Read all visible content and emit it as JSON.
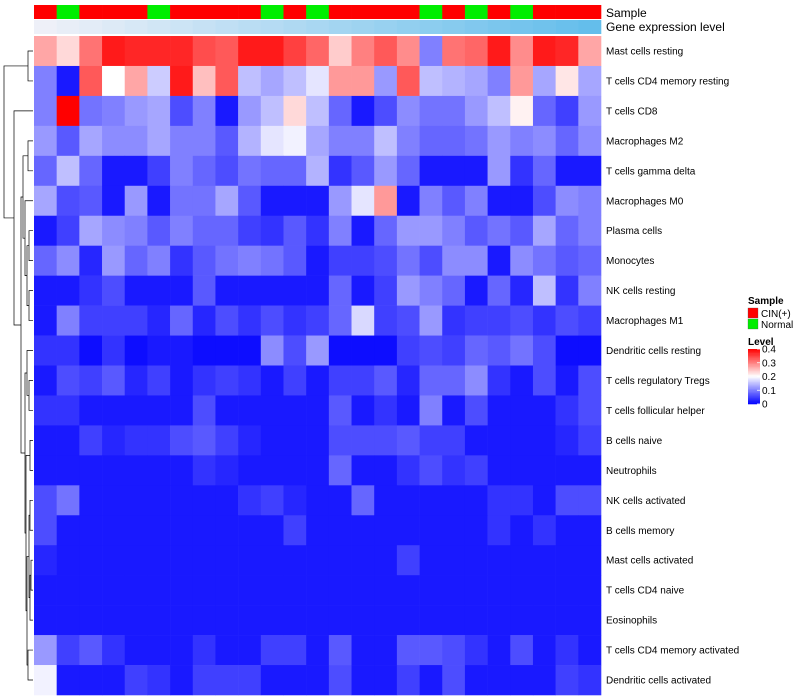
{
  "chart_data": {
    "type": "heatmap",
    "annotation_labels": {
      "sample": "Sample",
      "expression": "Gene expression level"
    },
    "sample_groups": [
      "CIN(+)",
      "Normal",
      "CIN(+)",
      "CIN(+)",
      "CIN(+)",
      "Normal",
      "CIN(+)",
      "CIN(+)",
      "CIN(+)",
      "CIN(+)",
      "Normal",
      "CIN(+)",
      "Normal",
      "CIN(+)",
      "CIN(+)",
      "CIN(+)",
      "CIN(+)",
      "Normal",
      "CIN(+)",
      "Normal",
      "CIN(+)",
      "Normal",
      "CIN(+)",
      "CIN(+)",
      "CIN(+)"
    ],
    "rows": [
      {
        "label": "Mast cells resting",
        "values": [
          0.27,
          0.23,
          0.31,
          0.38,
          0.37,
          0.37,
          0.37,
          0.34,
          0.33,
          0.38,
          0.38,
          0.35,
          0.32,
          0.24,
          0.3,
          0.33,
          0.29,
          0.1,
          0.31,
          0.32,
          0.38,
          0.29,
          0.38,
          0.37,
          0.27
        ]
      },
      {
        "label": "T cells CD4 memory resting",
        "values": [
          0.1,
          0.02,
          0.33,
          0.2,
          0.27,
          0.16,
          0.38,
          0.25,
          0.33,
          0.15,
          0.13,
          0.15,
          0.18,
          0.28,
          0.28,
          0.12,
          0.33,
          0.15,
          0.14,
          0.13,
          0.1,
          0.28,
          0.13,
          0.22,
          0.13
        ]
      },
      {
        "label": "T cells CD8",
        "values": [
          0.1,
          0.4,
          0.09,
          0.1,
          0.12,
          0.13,
          0.06,
          0.1,
          0.02,
          0.12,
          0.15,
          0.23,
          0.15,
          0.08,
          0.02,
          0.06,
          0.11,
          0.09,
          0.09,
          0.12,
          0.15,
          0.21,
          0.08,
          0.05,
          0.12
        ]
      },
      {
        "label": "Macrophages M2",
        "values": [
          0.12,
          0.07,
          0.13,
          0.11,
          0.11,
          0.13,
          0.1,
          0.1,
          0.07,
          0.14,
          0.18,
          0.19,
          0.13,
          0.1,
          0.1,
          0.15,
          0.1,
          0.08,
          0.08,
          0.09,
          0.12,
          0.1,
          0.11,
          0.08,
          0.11
        ]
      },
      {
        "label": "T cells gamma delta",
        "values": [
          0.08,
          0.15,
          0.08,
          0.02,
          0.02,
          0.05,
          0.1,
          0.08,
          0.06,
          0.09,
          0.08,
          0.08,
          0.14,
          0.04,
          0.07,
          0.12,
          0.08,
          0.02,
          0.02,
          0.02,
          0.12,
          0.04,
          0.08,
          0.02,
          0.02
        ]
      },
      {
        "label": "Macrophages M0",
        "values": [
          0.13,
          0.06,
          0.07,
          0.02,
          0.12,
          0.02,
          0.09,
          0.09,
          0.13,
          0.07,
          0.02,
          0.02,
          0.02,
          0.12,
          0.18,
          0.28,
          0.02,
          0.1,
          0.07,
          0.1,
          0.02,
          0.02,
          0.06,
          0.11,
          0.1
        ]
      },
      {
        "label": "Plasma cells",
        "values": [
          0.02,
          0.05,
          0.13,
          0.11,
          0.1,
          0.07,
          0.1,
          0.08,
          0.08,
          0.05,
          0.04,
          0.07,
          0.04,
          0.1,
          0.02,
          0.08,
          0.12,
          0.12,
          0.1,
          0.07,
          0.09,
          0.07,
          0.13,
          0.08,
          0.1
        ]
      },
      {
        "label": "Monocytes",
        "values": [
          0.08,
          0.11,
          0.03,
          0.12,
          0.08,
          0.1,
          0.04,
          0.07,
          0.09,
          0.1,
          0.09,
          0.07,
          0.02,
          0.05,
          0.05,
          0.06,
          0.09,
          0.06,
          0.11,
          0.11,
          0.02,
          0.11,
          0.09,
          0.07,
          0.08
        ]
      },
      {
        "label": "NK cells resting",
        "values": [
          0.02,
          0.02,
          0.04,
          0.06,
          0.02,
          0.02,
          0.02,
          0.07,
          0.02,
          0.02,
          0.02,
          0.02,
          0.02,
          0.08,
          0.02,
          0.05,
          0.12,
          0.1,
          0.08,
          0.02,
          0.08,
          0.03,
          0.15,
          0.04,
          0.1
        ]
      },
      {
        "label": "Macrophages M1",
        "values": [
          0.02,
          0.1,
          0.05,
          0.05,
          0.05,
          0.03,
          0.08,
          0.03,
          0.06,
          0.04,
          0.06,
          0.04,
          0.05,
          0.08,
          0.17,
          0.05,
          0.06,
          0.12,
          0.04,
          0.05,
          0.05,
          0.06,
          0.04,
          0.06,
          0.05
        ]
      },
      {
        "label": "Dendritic cells resting",
        "values": [
          0.04,
          0.04,
          0.01,
          0.04,
          0.01,
          0.02,
          0.02,
          0.01,
          0.01,
          0.01,
          0.11,
          0.06,
          0.12,
          0.01,
          0.01,
          0.01,
          0.05,
          0.06,
          0.05,
          0.08,
          0.07,
          0.09,
          0.06,
          0.01,
          0.01
        ]
      },
      {
        "label": "T cells regulatory  Tregs",
        "values": [
          0.02,
          0.06,
          0.05,
          0.07,
          0.03,
          0.05,
          0.02,
          0.04,
          0.05,
          0.04,
          0.02,
          0.05,
          0.02,
          0.05,
          0.05,
          0.07,
          0.03,
          0.08,
          0.08,
          0.11,
          0.04,
          0.02,
          0.06,
          0.02,
          0.06
        ]
      },
      {
        "label": "T cells follicular helper",
        "values": [
          0.04,
          0.04,
          0.02,
          0.02,
          0.02,
          0.02,
          0.02,
          0.06,
          0.02,
          0.02,
          0.02,
          0.02,
          0.02,
          0.07,
          0.02,
          0.04,
          0.02,
          0.1,
          0.02,
          0.06,
          0.02,
          0.02,
          0.02,
          0.04,
          0.06
        ]
      },
      {
        "label": "B cells naive",
        "values": [
          0.02,
          0.02,
          0.05,
          0.03,
          0.04,
          0.04,
          0.06,
          0.07,
          0.05,
          0.03,
          0.02,
          0.02,
          0.02,
          0.06,
          0.06,
          0.06,
          0.07,
          0.05,
          0.05,
          0.02,
          0.02,
          0.02,
          0.02,
          0.03,
          0.05
        ]
      },
      {
        "label": "Neutrophils",
        "values": [
          0.02,
          0.02,
          0.02,
          0.02,
          0.02,
          0.02,
          0.02,
          0.04,
          0.03,
          0.02,
          0.02,
          0.02,
          0.02,
          0.08,
          0.02,
          0.02,
          0.04,
          0.06,
          0.04,
          0.05,
          0.02,
          0.02,
          0.02,
          0.02,
          0.02
        ]
      },
      {
        "label": "NK cells activated",
        "values": [
          0.06,
          0.09,
          0.02,
          0.02,
          0.02,
          0.02,
          0.02,
          0.02,
          0.02,
          0.04,
          0.05,
          0.03,
          0.02,
          0.02,
          0.08,
          0.02,
          0.02,
          0.02,
          0.02,
          0.02,
          0.04,
          0.04,
          0.02,
          0.06,
          0.06
        ]
      },
      {
        "label": "B cells memory",
        "values": [
          0.06,
          0.02,
          0.02,
          0.02,
          0.02,
          0.02,
          0.02,
          0.02,
          0.02,
          0.02,
          0.02,
          0.05,
          0.02,
          0.02,
          0.02,
          0.02,
          0.02,
          0.02,
          0.02,
          0.02,
          0.04,
          0.02,
          0.04,
          0.02,
          0.02
        ]
      },
      {
        "label": "Mast cells activated",
        "values": [
          0.03,
          0.02,
          0.02,
          0.02,
          0.02,
          0.02,
          0.02,
          0.02,
          0.02,
          0.02,
          0.02,
          0.02,
          0.02,
          0.02,
          0.02,
          0.02,
          0.05,
          0.02,
          0.02,
          0.02,
          0.02,
          0.02,
          0.02,
          0.02,
          0.02
        ]
      },
      {
        "label": "T cells CD4 naive",
        "values": [
          0.02,
          0.02,
          0.02,
          0.02,
          0.02,
          0.02,
          0.02,
          0.02,
          0.02,
          0.02,
          0.02,
          0.02,
          0.02,
          0.02,
          0.02,
          0.02,
          0.02,
          0.02,
          0.02,
          0.02,
          0.02,
          0.02,
          0.02,
          0.02,
          0.02
        ]
      },
      {
        "label": "Eosinophils",
        "values": [
          0.02,
          0.02,
          0.02,
          0.02,
          0.02,
          0.02,
          0.02,
          0.02,
          0.02,
          0.02,
          0.02,
          0.02,
          0.02,
          0.02,
          0.02,
          0.02,
          0.02,
          0.02,
          0.02,
          0.02,
          0.02,
          0.02,
          0.02,
          0.02,
          0.02
        ]
      },
      {
        "label": "T cells CD4 memory activated",
        "values": [
          0.12,
          0.05,
          0.07,
          0.04,
          0.02,
          0.02,
          0.02,
          0.04,
          0.02,
          0.02,
          0.05,
          0.05,
          0.02,
          0.07,
          0.02,
          0.02,
          0.07,
          0.07,
          0.06,
          0.04,
          0.02,
          0.06,
          0.02,
          0.04,
          0.02
        ]
      },
      {
        "label": "Dendritic cells activated",
        "values": [
          0.19,
          0.02,
          0.02,
          0.02,
          0.05,
          0.04,
          0.02,
          0.05,
          0.05,
          0.05,
          0.02,
          0.02,
          0.02,
          0.06,
          0.02,
          0.02,
          0.05,
          0.02,
          0.06,
          0.02,
          0.02,
          0.02,
          0.02,
          0.05,
          0.04
        ]
      }
    ],
    "color_scale": {
      "min": 0,
      "max": 0.4,
      "low": "#0000ff",
      "mid": "#ffffff",
      "high": "#ff0000"
    },
    "legend": {
      "sample_title": "Sample",
      "sample_items": [
        {
          "label": "CIN(+)",
          "color": "#ff0000"
        },
        {
          "label": "Normal",
          "color": "#00ee00"
        }
      ],
      "level_title": "Level",
      "level_ticks": [
        {
          "label": "0.4",
          "value": 0.4
        },
        {
          "label": "0.3",
          "value": 0.3
        },
        {
          "label": "0.2",
          "value": 0.2
        },
        {
          "label": "0.1",
          "value": 0.1
        },
        {
          "label": "0",
          "value": 0
        }
      ]
    }
  }
}
